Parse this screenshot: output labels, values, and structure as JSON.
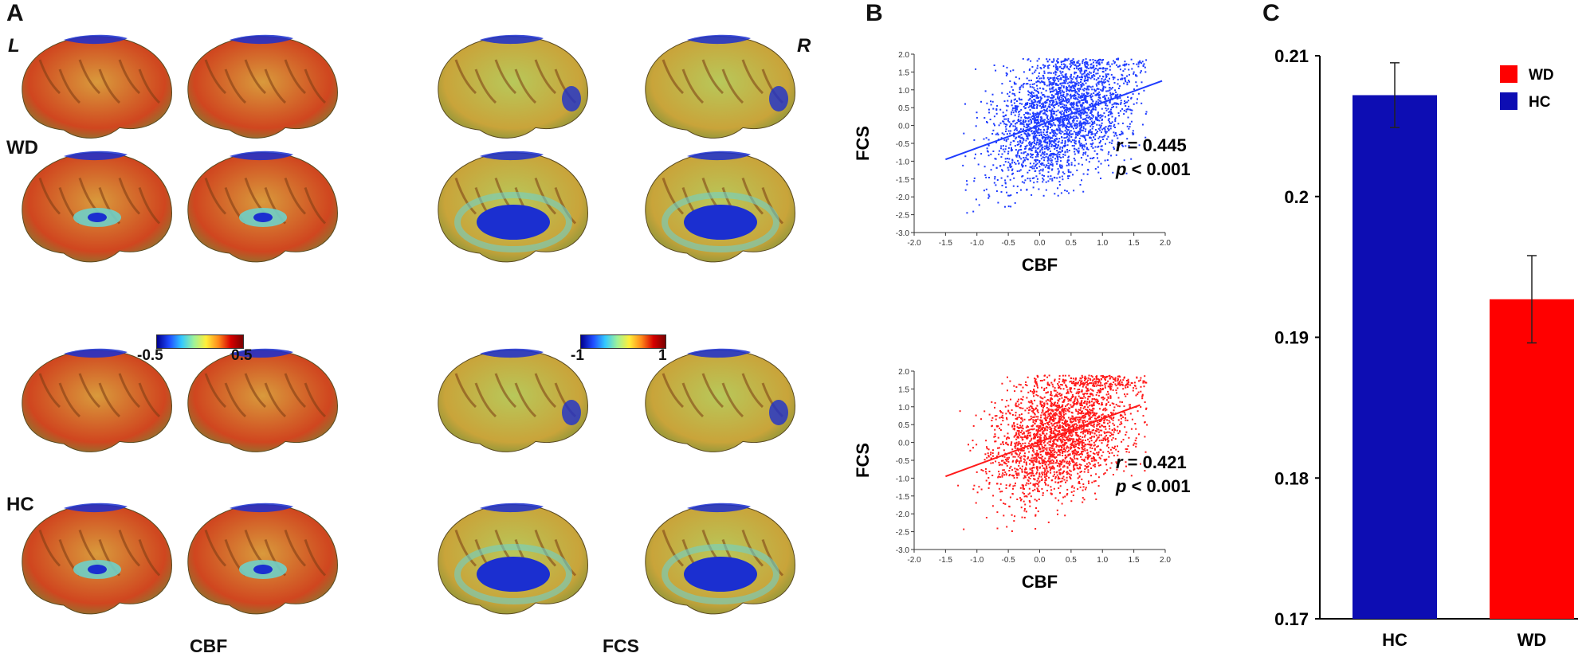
{
  "panels": {
    "a": {
      "letter": "A",
      "hemisphere_left": "L",
      "hemisphere_right": "R",
      "groups": [
        "WD",
        "HC"
      ],
      "map_labels": {
        "cbf": "CBF",
        "fcs": "FCS"
      },
      "colorbars": [
        {
          "min": "-0.5",
          "max": "0.5"
        },
        {
          "min": "-1",
          "max": "1"
        }
      ],
      "colors": {
        "cbf_surface": "#d99a3c",
        "cbf_hot": "#d0461f",
        "fcs_surface": "#b8c85a",
        "cold": "#1b2fd0",
        "teal": "#6fd0c8"
      }
    },
    "b": {
      "letter": "B"
    },
    "c": {
      "letter": "C"
    }
  },
  "chart_data": [
    {
      "type": "scatter",
      "panel": "B (top)",
      "group": "WD",
      "color": "#1f3cff",
      "xlabel": "CBF",
      "ylabel": "FCS",
      "xlim": [
        -2.0,
        2.0
      ],
      "ylim": [
        -3.0,
        2.0
      ],
      "xticks": [
        "-2.0",
        "-1.5",
        "-1.0",
        "-0.5",
        "0.0",
        "0.5",
        "1.0",
        "1.5",
        "2.0"
      ],
      "yticks": [
        "2.0",
        "1.5",
        "1.0",
        "0.5",
        "0.0",
        "-0.5",
        "-1.0",
        "-1.5",
        "-2.0",
        "-2.5",
        "-3.0"
      ],
      "fit_line": {
        "x": [
          -1.5,
          1.95
        ],
        "y": [
          -0.95,
          1.25
        ]
      },
      "annotation": {
        "r_symbol": "r",
        "r_text": " = 0.445",
        "p_symbol": "p",
        "p_text": " < 0.001"
      }
    },
    {
      "type": "scatter",
      "panel": "B (bottom)",
      "group": "HC",
      "color": "#ff1a1a",
      "xlabel": "CBF",
      "ylabel": "FCS",
      "xlim": [
        -2.0,
        2.0
      ],
      "ylim": [
        -3.0,
        2.0
      ],
      "xticks": [
        "-2.0",
        "-1.5",
        "-1.0",
        "-0.5",
        "0.0",
        "0.5",
        "1.0",
        "1.5",
        "2.0"
      ],
      "yticks": [
        "2.0",
        "1.5",
        "1.0",
        "0.5",
        "0.0",
        "-0.5",
        "-1.0",
        "-1.5",
        "-2.0",
        "-2.5",
        "-3.0"
      ],
      "fit_line": {
        "x": [
          -1.5,
          1.6
        ],
        "y": [
          -0.95,
          1.05
        ]
      },
      "annotation": {
        "r_symbol": "r",
        "r_text": " = 0.421",
        "p_symbol": "p",
        "p_text": " < 0.001"
      }
    },
    {
      "type": "bar",
      "panel": "C",
      "categories": [
        "HC",
        "WD"
      ],
      "values": [
        0.2072,
        0.1927
      ],
      "errors": [
        0.0023,
        0.0031
      ],
      "colors": [
        "#0d0db3",
        "#ff0000"
      ],
      "ylim": [
        0.17,
        0.21
      ],
      "yticks": [
        "0.21",
        "0.2",
        "0.19",
        "0.18",
        "0.17"
      ],
      "legend": [
        {
          "label": "WD",
          "color": "#ff0000"
        },
        {
          "label": "HC",
          "color": "#0d0db3"
        }
      ],
      "legend_position": "top-right"
    }
  ]
}
